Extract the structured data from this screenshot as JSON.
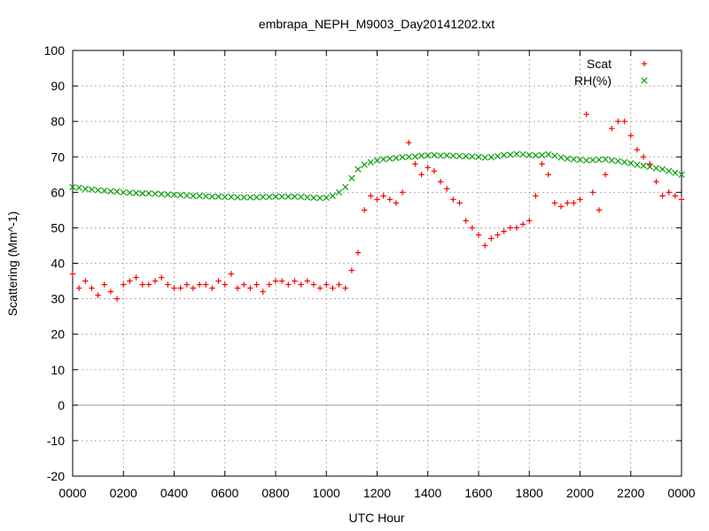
{
  "chart_data": {
    "type": "scatter",
    "title": "embrapa_NEPH_M9003_Day20141202.txt",
    "xlabel": "UTC Hour",
    "ylabel": "Scattering (Mm^-1)",
    "xlim": [
      0,
      24
    ],
    "ylim": [
      -20,
      100
    ],
    "grid": true,
    "legend_position": "top-right",
    "x_tick_labels": [
      "0000",
      "0200",
      "0400",
      "0600",
      "0800",
      "1000",
      "1200",
      "1400",
      "1600",
      "1800",
      "2000",
      "2200",
      "0000"
    ],
    "y_ticks": [
      -20,
      -10,
      0,
      10,
      20,
      30,
      40,
      50,
      60,
      70,
      80,
      90,
      100
    ],
    "series": [
      {
        "name": "Scat",
        "marker": "plus",
        "color": "#ff0000",
        "x": [
          0.0,
          0.25,
          0.5,
          0.75,
          1.0,
          1.25,
          1.5,
          1.75,
          2.0,
          2.25,
          2.5,
          2.75,
          3.0,
          3.25,
          3.5,
          3.75,
          4.0,
          4.25,
          4.5,
          4.75,
          5.0,
          5.25,
          5.5,
          5.75,
          6.0,
          6.25,
          6.5,
          6.75,
          7.0,
          7.25,
          7.5,
          7.75,
          8.0,
          8.25,
          8.5,
          8.75,
          9.0,
          9.25,
          9.5,
          9.75,
          10.0,
          10.25,
          10.5,
          10.75,
          11.0,
          11.25,
          11.5,
          11.75,
          12.0,
          12.25,
          12.5,
          12.75,
          13.0,
          13.25,
          13.5,
          13.75,
          14.0,
          14.25,
          14.5,
          14.75,
          15.0,
          15.25,
          15.5,
          15.75,
          16.0,
          16.25,
          16.5,
          16.75,
          17.0,
          17.25,
          17.5,
          17.75,
          18.0,
          18.25,
          18.5,
          18.75,
          19.0,
          19.25,
          19.5,
          19.75,
          20.0,
          20.25,
          20.5,
          20.75,
          21.0,
          21.25,
          21.5,
          21.75,
          22.0,
          22.25,
          22.5,
          22.75,
          23.0,
          23.25,
          23.5,
          23.75,
          24.0
        ],
        "values": [
          37,
          33,
          35,
          33,
          31,
          34,
          32,
          30,
          34,
          35,
          36,
          34,
          34,
          35,
          36,
          34,
          33,
          33,
          34,
          33,
          34,
          34,
          33,
          35,
          34,
          37,
          33,
          34,
          33,
          34,
          32,
          34,
          35,
          35,
          34,
          35,
          34,
          35,
          34,
          33,
          34,
          33,
          34,
          33,
          38,
          43,
          55,
          59,
          58,
          59,
          58,
          57,
          60,
          74,
          68,
          65,
          67,
          66,
          63,
          61,
          58,
          57,
          52,
          50,
          48,
          45,
          47,
          48,
          49,
          50,
          50,
          51,
          52,
          59,
          68,
          65,
          57,
          56,
          57,
          57,
          58,
          82,
          60,
          55,
          65,
          78,
          80,
          80,
          76,
          72,
          70,
          68,
          63,
          59,
          60,
          59,
          58
        ]
      },
      {
        "name": "RH(%)",
        "marker": "cross",
        "color": "#00a000",
        "x": [
          0.0,
          0.25,
          0.5,
          0.75,
          1.0,
          1.25,
          1.5,
          1.75,
          2.0,
          2.25,
          2.5,
          2.75,
          3.0,
          3.25,
          3.5,
          3.75,
          4.0,
          4.25,
          4.5,
          4.75,
          5.0,
          5.25,
          5.5,
          5.75,
          6.0,
          6.25,
          6.5,
          6.75,
          7.0,
          7.25,
          7.5,
          7.75,
          8.0,
          8.25,
          8.5,
          8.75,
          9.0,
          9.25,
          9.5,
          9.75,
          10.0,
          10.25,
          10.5,
          10.75,
          11.0,
          11.25,
          11.5,
          11.75,
          12.0,
          12.25,
          12.5,
          12.75,
          13.0,
          13.25,
          13.5,
          13.75,
          14.0,
          14.25,
          14.5,
          14.75,
          15.0,
          15.25,
          15.5,
          15.75,
          16.0,
          16.25,
          16.5,
          16.75,
          17.0,
          17.25,
          17.5,
          17.75,
          18.0,
          18.25,
          18.5,
          18.75,
          19.0,
          19.25,
          19.5,
          19.75,
          20.0,
          20.25,
          20.5,
          20.75,
          21.0,
          21.25,
          21.5,
          21.75,
          22.0,
          22.25,
          22.5,
          22.75,
          23.0,
          23.25,
          23.5,
          23.75,
          24.0
        ],
        "values": [
          61.5,
          61.3,
          61.0,
          60.8,
          60.6,
          60.5,
          60.3,
          60.2,
          60.0,
          59.9,
          59.8,
          59.7,
          59.7,
          59.6,
          59.5,
          59.4,
          59.3,
          59.2,
          59.1,
          59.0,
          59.0,
          58.9,
          58.8,
          58.8,
          58.7,
          58.7,
          58.6,
          58.6,
          58.6,
          58.6,
          58.7,
          58.7,
          58.8,
          58.8,
          58.8,
          58.8,
          58.7,
          58.6,
          58.5,
          58.4,
          58.5,
          59.0,
          60.0,
          61.5,
          64.0,
          66.5,
          67.8,
          68.5,
          69.0,
          69.3,
          69.5,
          69.7,
          69.9,
          70.0,
          70.1,
          70.3,
          70.4,
          70.5,
          70.3,
          70.4,
          70.3,
          70.2,
          70.2,
          70.1,
          70.0,
          69.8,
          69.9,
          70.2,
          70.5,
          70.6,
          70.8,
          70.7,
          70.5,
          70.4,
          70.5,
          70.7,
          70.3,
          69.8,
          69.5,
          69.3,
          69.2,
          69.0,
          69.1,
          69.2,
          69.3,
          69.0,
          68.8,
          68.5,
          68.2,
          67.8,
          67.5,
          67.2,
          66.8,
          66.5,
          66.0,
          65.5,
          65.0
        ]
      }
    ]
  }
}
